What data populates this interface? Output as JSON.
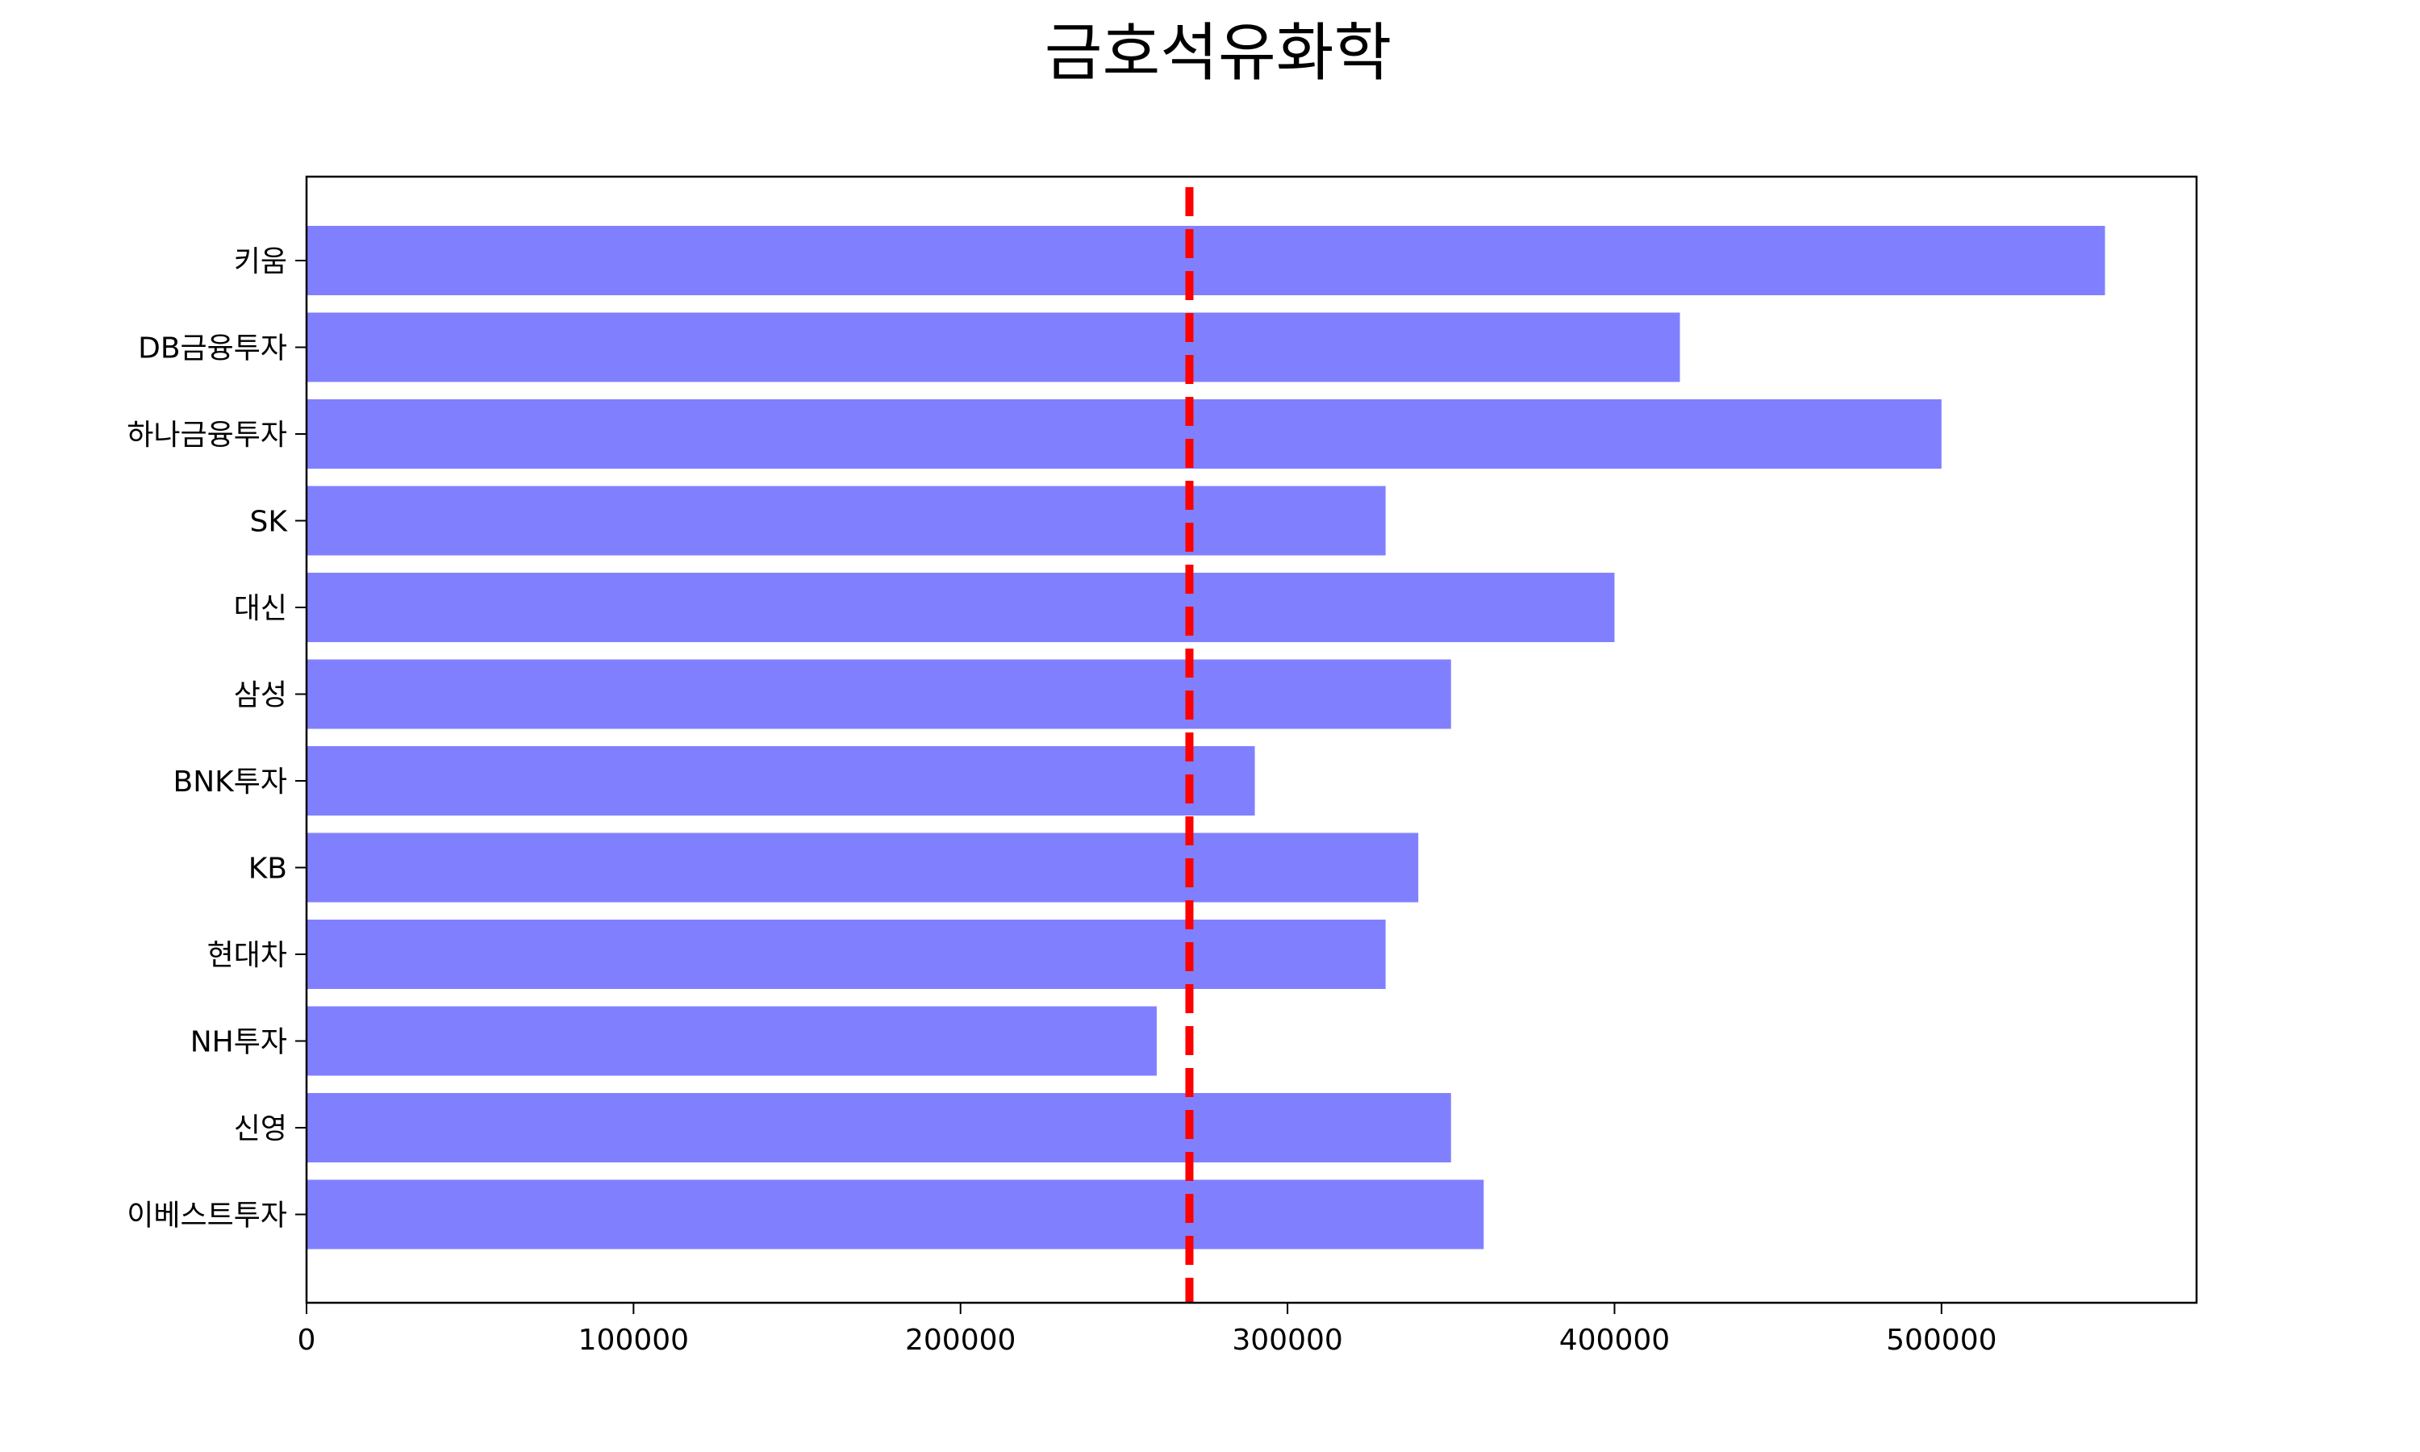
{
  "chart_data": {
    "type": "bar",
    "orientation": "horizontal",
    "title": "금호석유화학",
    "xlabel": "",
    "ylabel": "",
    "categories": [
      "키움",
      "DB금융투자",
      "하나금융투자",
      "SK",
      "대신",
      "삼성",
      "BNK투자",
      "KB",
      "현대차",
      "NH투자",
      "신영",
      "이베스트투자"
    ],
    "values": [
      550000,
      420000,
      500000,
      330000,
      400000,
      350000,
      290000,
      340000,
      330000,
      260000,
      350000,
      360000
    ],
    "xlim": [
      0,
      578000
    ],
    "xticks": [
      0,
      100000,
      200000,
      300000,
      400000,
      500000
    ],
    "xtick_labels": [
      "0",
      "100000",
      "200000",
      "300000",
      "400000",
      "500000"
    ],
    "reference_line": {
      "value": 270000,
      "style": "dashed"
    },
    "grid": false,
    "legend": "none",
    "colors": {
      "bar": "#8080ff",
      "reference_line": "#ff0000",
      "axes": "#000000"
    }
  }
}
